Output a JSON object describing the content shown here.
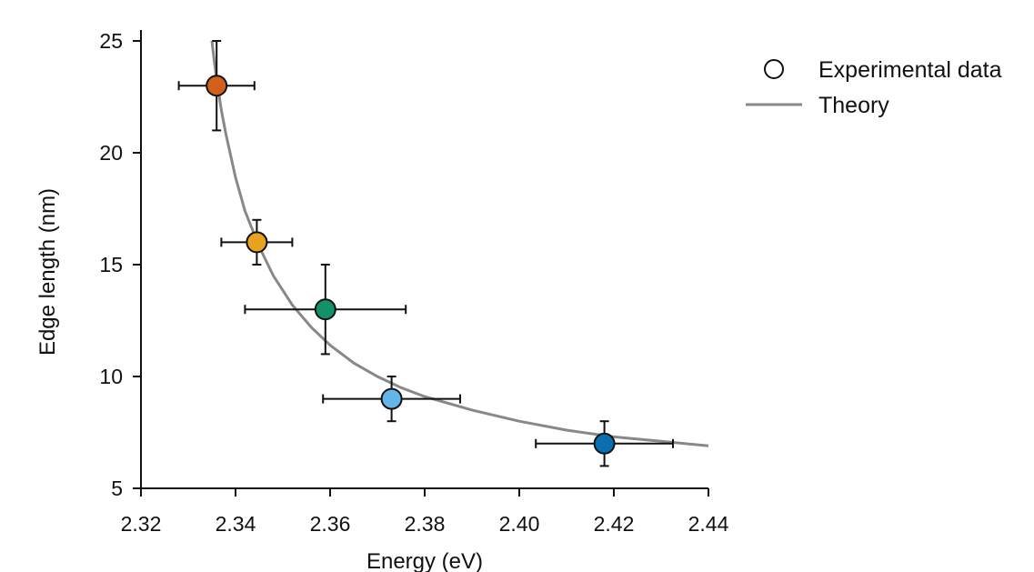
{
  "chart_data": {
    "type": "scatter",
    "xlabel": "Energy (eV)",
    "ylabel": "Edge length (nm)",
    "xlim": [
      2.32,
      2.44
    ],
    "ylim": [
      5,
      25.5
    ],
    "xticks": [
      2.32,
      2.34,
      2.36,
      2.38,
      2.4,
      2.42,
      2.44
    ],
    "xtick_labels": [
      "2.32",
      "2.34",
      "2.36",
      "2.38",
      "2.40",
      "2.42",
      "2.44"
    ],
    "yticks": [
      5,
      10,
      15,
      20,
      25
    ],
    "ytick_labels": [
      "5",
      "10",
      "15",
      "20",
      "25"
    ],
    "grid": false,
    "legend": {
      "placement": "top-right",
      "entries": [
        "Experimental data",
        "Theory"
      ]
    },
    "series": [
      {
        "name": "Experimental data",
        "kind": "points",
        "points": [
          {
            "x": 2.336,
            "y": 23,
            "xerr": 0.008,
            "yerr": 2,
            "color": "#d1601a"
          },
          {
            "x": 2.3445,
            "y": 16,
            "xerr": 0.0075,
            "yerr": 1,
            "color": "#e9a21d"
          },
          {
            "x": 2.359,
            "y": 13,
            "xerr": 0.017,
            "yerr": 2,
            "color": "#12916a"
          },
          {
            "x": 2.373,
            "y": 9,
            "xerr": 0.0145,
            "yerr": 1,
            "color": "#64b5ea"
          },
          {
            "x": 2.418,
            "y": 7,
            "xerr": 0.0145,
            "yerr": 1,
            "color": "#0a6fb0"
          }
        ]
      },
      {
        "name": "Theory",
        "kind": "line",
        "color": "#888888",
        "x": [
          2.335,
          2.3355,
          2.336,
          2.337,
          2.338,
          2.34,
          2.342,
          2.345,
          2.348,
          2.352,
          2.356,
          2.36,
          2.365,
          2.37,
          2.375,
          2.38,
          2.39,
          2.4,
          2.41,
          2.42,
          2.43,
          2.44
        ],
        "y": [
          25.0,
          24.1,
          23.3,
          21.9,
          20.8,
          18.9,
          17.4,
          15.8,
          14.5,
          13.2,
          12.2,
          11.4,
          10.6,
          10.0,
          9.5,
          9.1,
          8.5,
          8.0,
          7.6,
          7.3,
          7.1,
          6.9
        ]
      }
    ]
  }
}
